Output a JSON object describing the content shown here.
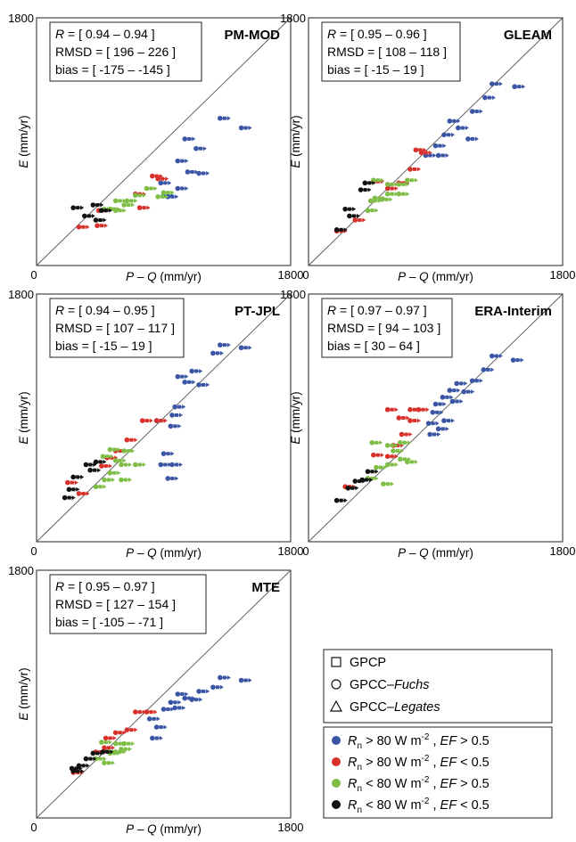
{
  "axis_text": {
    "y_label_var": "E",
    "y_label_unit": " (mm/yr)",
    "x_label_var1": "P",
    "x_label_mid": " – ",
    "x_label_var2": "Q",
    "x_label_unit": " (mm/yr)"
  },
  "legend": {
    "markers": [
      {
        "shape": "square",
        "label": "GPCP"
      },
      {
        "shape": "circle",
        "label": "GPCC–",
        "label_italic": "Fuchs"
      },
      {
        "shape": "triangle",
        "label": "GPCC–",
        "label_italic": "Legates"
      }
    ],
    "classes": [
      {
        "key": "blue",
        "color": "#3a55a4",
        "rn_sym": "R",
        "rn_sub": "n",
        "rn_op": " > 80 W m",
        "rn_sup": "-2",
        "ef_sep": " ,  ",
        "ef_sym": "EF",
        "ef_op": " > 0.5"
      },
      {
        "key": "red",
        "color": "#d8312b",
        "rn_sym": "R",
        "rn_sub": "n",
        "rn_op": " > 80 W m",
        "rn_sup": "-2",
        "ef_sep": " ,  ",
        "ef_sym": "EF",
        "ef_op": " < 0.5"
      },
      {
        "key": "green",
        "color": "#7ebe46",
        "rn_sym": "R",
        "rn_sub": "n",
        "rn_op": " < 80 W m",
        "rn_sup": "-2",
        "ef_sep": " ,  ",
        "ef_sym": "EF",
        "ef_op": " > 0.5"
      },
      {
        "key": "black",
        "color": "#111111",
        "rn_sym": "R",
        "rn_sub": "n",
        "rn_op": " < 80 W m",
        "rn_sup": "-2",
        "ef_sep": " ,  ",
        "ef_sym": "EF",
        "ef_op": " < 0.5"
      }
    ]
  },
  "chart_data": [
    {
      "type": "scatter",
      "title": "PM-MOD",
      "stats": [
        "R = [ 0.94 – 0.94 ]",
        "RMSD = [ 196 – 226 ]",
        "bias = [ -175 – -145 ]"
      ],
      "xlim": [
        0,
        1800
      ],
      "ylim": [
        0,
        1800
      ],
      "tick_labels": {
        "x_min": "0",
        "x_max": "1800",
        "y_max": "1800"
      },
      "one_to_one_line": true,
      "series": [
        {
          "name": "blue",
          "points": [
            [
              1300,
              1070
            ],
            [
              1450,
              1000
            ],
            [
              1050,
              920
            ],
            [
              1130,
              850
            ],
            [
              1000,
              760
            ],
            [
              1070,
              680
            ],
            [
              1150,
              670
            ],
            [
              880,
              600
            ],
            [
              1000,
              560
            ],
            [
              900,
              510
            ],
            [
              930,
              500
            ]
          ]
        },
        {
          "name": "red",
          "points": [
            [
              820,
              650
            ],
            [
              860,
              630
            ],
            [
              700,
              520
            ],
            [
              730,
              420
            ],
            [
              440,
              400
            ],
            [
              430,
              290
            ],
            [
              300,
              280
            ]
          ]
        },
        {
          "name": "green",
          "points": [
            [
              780,
              560
            ],
            [
              900,
              530
            ],
            [
              860,
              500
            ],
            [
              700,
              510
            ],
            [
              560,
              470
            ],
            [
              640,
              470
            ],
            [
              620,
              440
            ],
            [
              560,
              400
            ],
            [
              480,
              410
            ],
            [
              520,
              410
            ]
          ]
        },
        {
          "name": "black",
          "points": [
            [
              260,
              420
            ],
            [
              340,
              360
            ],
            [
              420,
              330
            ],
            [
              460,
              400
            ],
            [
              400,
              440
            ]
          ]
        }
      ]
    },
    {
      "type": "scatter",
      "title": "GLEAM",
      "stats": [
        "R = [ 0.95 – 0.96 ]",
        "RMSD = [ 108 – 118 ]",
        "bias = [ -15 – 19 ]"
      ],
      "xlim": [
        0,
        1800
      ],
      "ylim": [
        0,
        1800
      ],
      "tick_labels": {
        "x_min": "0",
        "x_max": "1800",
        "y_max": "1800"
      },
      "one_to_one_line": true,
      "series": [
        {
          "name": "blue",
          "points": [
            [
              1300,
              1320
            ],
            [
              1460,
              1300
            ],
            [
              1250,
              1220
            ],
            [
              1160,
              1120
            ],
            [
              1000,
              1050
            ],
            [
              1060,
              1000
            ],
            [
              1130,
              920
            ],
            [
              960,
              950
            ],
            [
              900,
              870
            ],
            [
              920,
              800
            ],
            [
              830,
              800
            ]
          ]
        },
        {
          "name": "red",
          "points": [
            [
              760,
              840
            ],
            [
              800,
              820
            ],
            [
              720,
              700
            ],
            [
              640,
              600
            ],
            [
              560,
              560
            ],
            [
              460,
              610
            ],
            [
              200,
              250
            ],
            [
              330,
              330
            ]
          ]
        },
        {
          "name": "green",
          "points": [
            [
              460,
              620
            ],
            [
              560,
              590
            ],
            [
              640,
              590
            ],
            [
              700,
              620
            ],
            [
              560,
              520
            ],
            [
              640,
              520
            ],
            [
              470,
              490
            ],
            [
              520,
              480
            ],
            [
              440,
              470
            ],
            [
              420,
              400
            ]
          ]
        },
        {
          "name": "black",
          "points": [
            [
              400,
              600
            ],
            [
              370,
              550
            ],
            [
              260,
              410
            ],
            [
              290,
              360
            ],
            [
              200,
              260
            ]
          ]
        }
      ]
    },
    {
      "type": "scatter",
      "title": "PT-JPL",
      "stats": [
        "R = [ 0.94 – 0.95 ]",
        "RMSD = [ 107 – 117 ]",
        "bias = [ -15 – 19 ]"
      ],
      "xlim": [
        0,
        1800
      ],
      "ylim": [
        0,
        1800
      ],
      "tick_labels": {
        "x_min": "0",
        "x_max": "1800",
        "y_max": "1800"
      },
      "one_to_one_line": true,
      "series": [
        {
          "name": "blue",
          "points": [
            [
              1300,
              1430
            ],
            [
              1450,
              1410
            ],
            [
              1250,
              1370
            ],
            [
              1100,
              1240
            ],
            [
              1000,
              1200
            ],
            [
              1050,
              1160
            ],
            [
              1150,
              1140
            ],
            [
              980,
              980
            ],
            [
              960,
              920
            ],
            [
              850,
              880
            ],
            [
              950,
              840
            ],
            [
              900,
              640
            ],
            [
              880,
              560
            ],
            [
              960,
              560
            ],
            [
              930,
              460
            ]
          ]
        },
        {
          "name": "red",
          "points": [
            [
              850,
              880
            ],
            [
              750,
              880
            ],
            [
              640,
              740
            ],
            [
              560,
              660
            ],
            [
              500,
              610
            ],
            [
              460,
              550
            ],
            [
              220,
              430
            ],
            [
              300,
              350
            ]
          ]
        },
        {
          "name": "green",
          "points": [
            [
              520,
              670
            ],
            [
              620,
              660
            ],
            [
              470,
              620
            ],
            [
              560,
              590
            ],
            [
              600,
              560
            ],
            [
              700,
              560
            ],
            [
              520,
              500
            ],
            [
              480,
              450
            ],
            [
              600,
              450
            ],
            [
              420,
              400
            ]
          ]
        },
        {
          "name": "black",
          "points": [
            [
              420,
              580
            ],
            [
              350,
              560
            ],
            [
              380,
              520
            ],
            [
              260,
              470
            ],
            [
              230,
              380
            ],
            [
              200,
              320
            ]
          ]
        }
      ]
    },
    {
      "type": "scatter",
      "title": "ERA-Interim",
      "stats": [
        "R = [ 0.97 – 0.97 ]",
        "RMSD = [ 94 – 103 ]",
        "bias = [ 30 – 64 ]"
      ],
      "xlim": [
        0,
        1800
      ],
      "ylim": [
        0,
        1800
      ],
      "tick_labels": {
        "x_min": "0",
        "x_max": "1800",
        "y_max": "1800"
      },
      "one_to_one_line": true,
      "series": [
        {
          "name": "blue",
          "points": [
            [
              1300,
              1350
            ],
            [
              1450,
              1320
            ],
            [
              1240,
              1250
            ],
            [
              1160,
              1170
            ],
            [
              1050,
              1150
            ],
            [
              1000,
              1100
            ],
            [
              1100,
              1090
            ],
            [
              950,
              1050
            ],
            [
              1020,
              1020
            ],
            [
              900,
              1000
            ],
            [
              880,
              940
            ],
            [
              960,
              880
            ],
            [
              850,
              860
            ],
            [
              920,
              820
            ],
            [
              860,
              780
            ]
          ]
        },
        {
          "name": "red",
          "points": [
            [
              780,
              960
            ],
            [
              720,
              960
            ],
            [
              560,
              960
            ],
            [
              640,
              900
            ],
            [
              720,
              880
            ],
            [
              660,
              780
            ],
            [
              600,
              700
            ],
            [
              560,
              620
            ],
            [
              460,
              630
            ],
            [
              260,
              400
            ]
          ]
        },
        {
          "name": "green",
          "points": [
            [
              450,
              720
            ],
            [
              560,
              700
            ],
            [
              650,
              720
            ],
            [
              600,
              660
            ],
            [
              650,
              600
            ],
            [
              700,
              580
            ],
            [
              560,
              560
            ],
            [
              480,
              540
            ],
            [
              420,
              460
            ],
            [
              530,
              420
            ]
          ]
        },
        {
          "name": "black",
          "points": [
            [
              420,
              510
            ],
            [
              380,
              450
            ],
            [
              330,
              440
            ],
            [
              280,
              390
            ],
            [
              200,
              300
            ]
          ]
        }
      ]
    },
    {
      "type": "scatter",
      "title": "MTE",
      "stats": [
        "R = [ 0.95 – 0.97 ]",
        "RMSD = [ 127 – 154 ]",
        "bias = [ -105 – -71 ]"
      ],
      "xlim": [
        0,
        1800
      ],
      "ylim": [
        0,
        1800
      ],
      "tick_labels": {
        "x_min": "0",
        "x_max": "1800",
        "y_max": "1800"
      },
      "one_to_one_line": true,
      "series": [
        {
          "name": "blue",
          "points": [
            [
              1300,
              1020
            ],
            [
              1450,
              1000
            ],
            [
              1250,
              950
            ],
            [
              1150,
              920
            ],
            [
              1000,
              900
            ],
            [
              1050,
              870
            ],
            [
              1100,
              860
            ],
            [
              950,
              840
            ],
            [
              980,
              800
            ],
            [
              900,
              790
            ],
            [
              800,
              720
            ],
            [
              850,
              660
            ],
            [
              820,
              580
            ]
          ]
        },
        {
          "name": "red",
          "points": [
            [
              780,
              770
            ],
            [
              700,
              770
            ],
            [
              640,
              640
            ],
            [
              560,
              620
            ],
            [
              490,
              580
            ],
            [
              420,
              480
            ],
            [
              480,
              510
            ],
            [
              260,
              330
            ]
          ]
        },
        {
          "name": "green",
          "points": [
            [
              460,
              550
            ],
            [
              560,
              540
            ],
            [
              620,
              540
            ],
            [
              600,
              500
            ],
            [
              560,
              480
            ],
            [
              510,
              480
            ],
            [
              420,
              430
            ],
            [
              480,
              400
            ],
            [
              520,
              470
            ]
          ]
        },
        {
          "name": "black",
          "points": [
            [
              470,
              480
            ],
            [
              400,
              470
            ],
            [
              350,
              430
            ],
            [
              300,
              380
            ],
            [
              250,
              360
            ],
            [
              260,
              340
            ]
          ]
        }
      ]
    }
  ]
}
